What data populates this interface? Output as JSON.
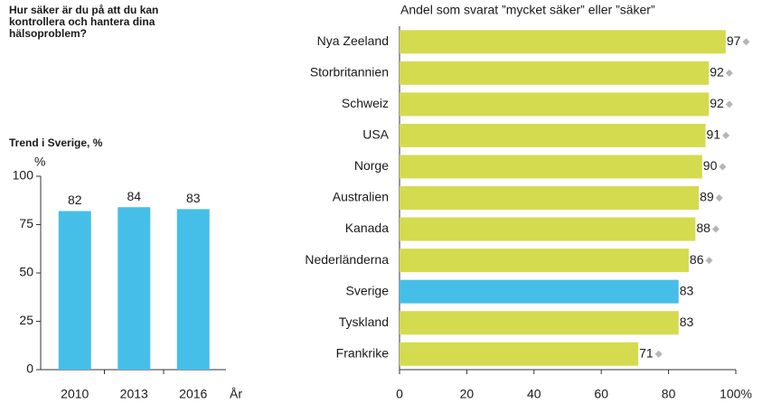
{
  "chart_data": [
    {
      "type": "bar",
      "title": "Hur säker är du på att du kan kontrollera och hantera dina hälsoproblem?",
      "subtitle": "Trend i Sverige, %",
      "y_label": "%",
      "x_label": "År",
      "categories": [
        "2010",
        "2013",
        "2016"
      ],
      "values": [
        82,
        84,
        83
      ],
      "color": "#45bfe8",
      "ylim": [
        0,
        100
      ],
      "yticks": [
        0,
        25,
        50,
        75,
        100
      ]
    },
    {
      "type": "barh",
      "title": "Andel som svarat ”mycket säker” eller ”säker”",
      "categories": [
        "Nya Zeeland",
        "Storbritannien",
        "Schweiz",
        "USA",
        "Norge",
        "Australien",
        "Kanada",
        "Nederländerna",
        "Sverige",
        "Tyskland",
        "Frankrike"
      ],
      "values": [
        97,
        92,
        92,
        91,
        90,
        89,
        88,
        86,
        83,
        83,
        71
      ],
      "colors": [
        "#d4db4f",
        "#d4db4f",
        "#d4db4f",
        "#d4db4f",
        "#d4db4f",
        "#d4db4f",
        "#d4db4f",
        "#d4db4f",
        "#45bfe8",
        "#d4db4f",
        "#d4db4f"
      ],
      "diamond": [
        true,
        true,
        true,
        true,
        true,
        true,
        true,
        true,
        false,
        false,
        true
      ],
      "diamond_color": "#b5b5b5",
      "xlim": [
        0,
        100
      ],
      "xticks": [
        0,
        20,
        40,
        60,
        80,
        {
          "value": 100,
          "label": "100%"
        }
      ]
    }
  ]
}
